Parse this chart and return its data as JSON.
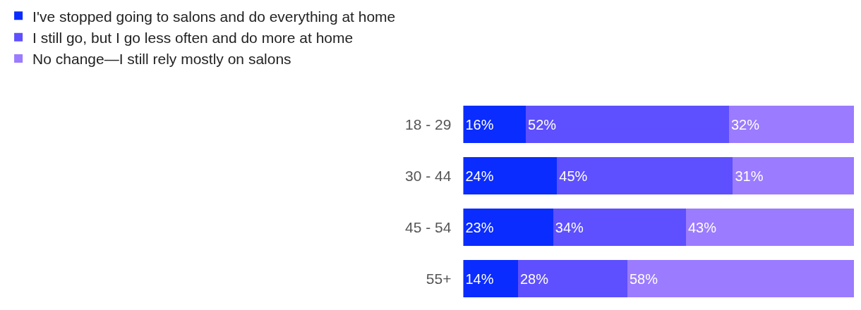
{
  "chart_data": {
    "type": "bar",
    "orientation": "horizontal",
    "stacked": true,
    "legend": "top left",
    "categories": [
      "18 - 29",
      "30 - 44",
      "45 - 54",
      "55+"
    ],
    "series": [
      {
        "name": "I've stopped going to salons and do everything at home",
        "color": "#0a2cff",
        "values": [
          16,
          24,
          23,
          14
        ],
        "value_labels": [
          "16%",
          "24%",
          "23%",
          "14%"
        ]
      },
      {
        "name": "I still go, but I go less often and do more at home",
        "color": "#5e4fff",
        "values": [
          52,
          45,
          34,
          28
        ],
        "value_labels": [
          "52%",
          "45%",
          "34%",
          "28%"
        ]
      },
      {
        "name": "No change—I still rely mostly on salons",
        "color": "#9b7bff",
        "values": [
          32,
          31,
          43,
          58
        ],
        "value_labels": [
          "32%",
          "31%",
          "43%",
          "58%"
        ]
      }
    ]
  }
}
